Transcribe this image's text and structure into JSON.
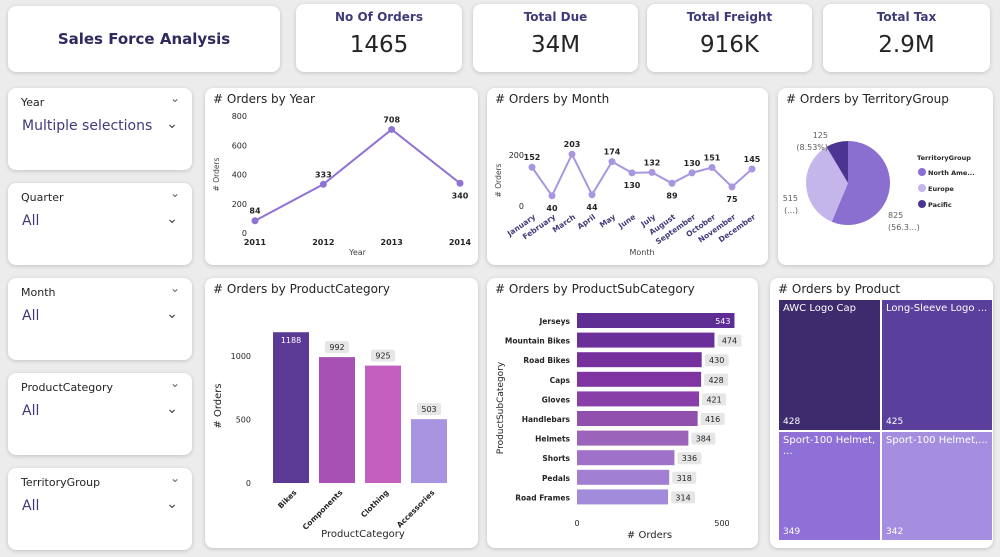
{
  "title": "Sales Force Analysis",
  "kpis": [
    {
      "label": "No Of Orders",
      "value": "1465"
    },
    {
      "label": "Total Due",
      "value": "34M"
    },
    {
      "label": "Total Freight",
      "value": "916K"
    },
    {
      "label": "Total Tax",
      "value": "2.9M"
    }
  ],
  "slicers": [
    {
      "label": "Year",
      "value": "Multiple selections"
    },
    {
      "label": "Quarter",
      "value": "All"
    },
    {
      "label": "Month",
      "value": "All"
    },
    {
      "label": "ProductCategory",
      "value": "All"
    },
    {
      "label": "TerritoryGroup",
      "value": "All"
    }
  ],
  "chart_data": [
    {
      "id": "year",
      "type": "line",
      "title": "# Orders by Year",
      "xlabel": "Year",
      "ylabel": "# Orders",
      "categories": [
        "2011",
        "2012",
        "2013",
        "2014"
      ],
      "values": [
        84,
        333,
        708,
        340
      ],
      "ylim": [
        0,
        800
      ],
      "yticks": [
        0,
        200,
        400,
        600,
        800
      ],
      "color": "#8f72d6"
    },
    {
      "id": "month",
      "type": "line",
      "title": "# Orders by Month",
      "xlabel": "Month",
      "ylabel": "# Orders",
      "categories": [
        "January",
        "February",
        "March",
        "April",
        "May",
        "June",
        "July",
        "August",
        "September",
        "October",
        "November",
        "December"
      ],
      "values": [
        152,
        40,
        203,
        44,
        174,
        130,
        132,
        89,
        130,
        151,
        75,
        145
      ],
      "ylim": [
        0,
        200
      ],
      "yticks": [
        0,
        200
      ],
      "color": "#a996e0"
    },
    {
      "id": "territory",
      "type": "pie",
      "title": "# Orders by TerritoryGroup",
      "legend_title": "TerritoryGroup",
      "legend_position": "right",
      "slices": [
        {
          "name": "North Ame...",
          "value": 825,
          "label": "825",
          "pct": "(56.3...)",
          "color": "#8a6fd0"
        },
        {
          "name": "Europe",
          "value": 515,
          "label": "515",
          "pct": "(...)",
          "color": "#c4b5ea"
        },
        {
          "name": "Pacific",
          "value": 125,
          "label": "125",
          "pct": "(8.53%)",
          "color": "#4b3592"
        }
      ]
    },
    {
      "id": "category",
      "type": "bar",
      "title": "# Orders by ProductCategory",
      "xlabel": "ProductCategory",
      "ylabel": "# Orders",
      "categories": [
        "Bikes",
        "Components",
        "Clothing",
        "Accessories"
      ],
      "values": [
        1188,
        992,
        925,
        503
      ],
      "colors": [
        "#5b3a96",
        "#a651b3",
        "#c35fbf",
        "#a894e0"
      ],
      "ylim": [
        0,
        1300
      ],
      "yticks": [
        0,
        500,
        1000
      ]
    },
    {
      "id": "subcategory",
      "type": "bar",
      "orientation": "horizontal",
      "title": "# Orders by ProductSubCategory",
      "xlabel": "# Orders",
      "ylabel": "ProductSubCategory",
      "categories": [
        "Jerseys",
        "Mountain Bikes",
        "Road Bikes",
        "Caps",
        "Gloves",
        "Handlebars",
        "Helmets",
        "Shorts",
        "Pedals",
        "Road Frames"
      ],
      "values": [
        543,
        474,
        430,
        428,
        421,
        416,
        384,
        336,
        318,
        314
      ],
      "colors": [
        "#5e2e94",
        "#6a2f99",
        "#76309d",
        "#7f34a2",
        "#8840a8",
        "#9150ae",
        "#9b63b9",
        "#a071c8",
        "#a17fd2",
        "#a38bdc"
      ],
      "xlim": [
        0,
        550
      ],
      "xticks": [
        0,
        500
      ]
    },
    {
      "id": "product",
      "type": "treemap",
      "title": "# Orders by Product",
      "items": [
        {
          "name": "AWC Logo Cap",
          "value": 428,
          "color": "#3d2b6e"
        },
        {
          "name": "Long-Sleeve Logo ...",
          "value": 425,
          "color": "#5a3f9c"
        },
        {
          "name": "Sport-100 Helmet, ...",
          "value": 349,
          "color": "#8e70d6"
        },
        {
          "name": "Sport-100 Helmet,...",
          "value": 342,
          "color": "#a58ee0"
        }
      ]
    }
  ]
}
